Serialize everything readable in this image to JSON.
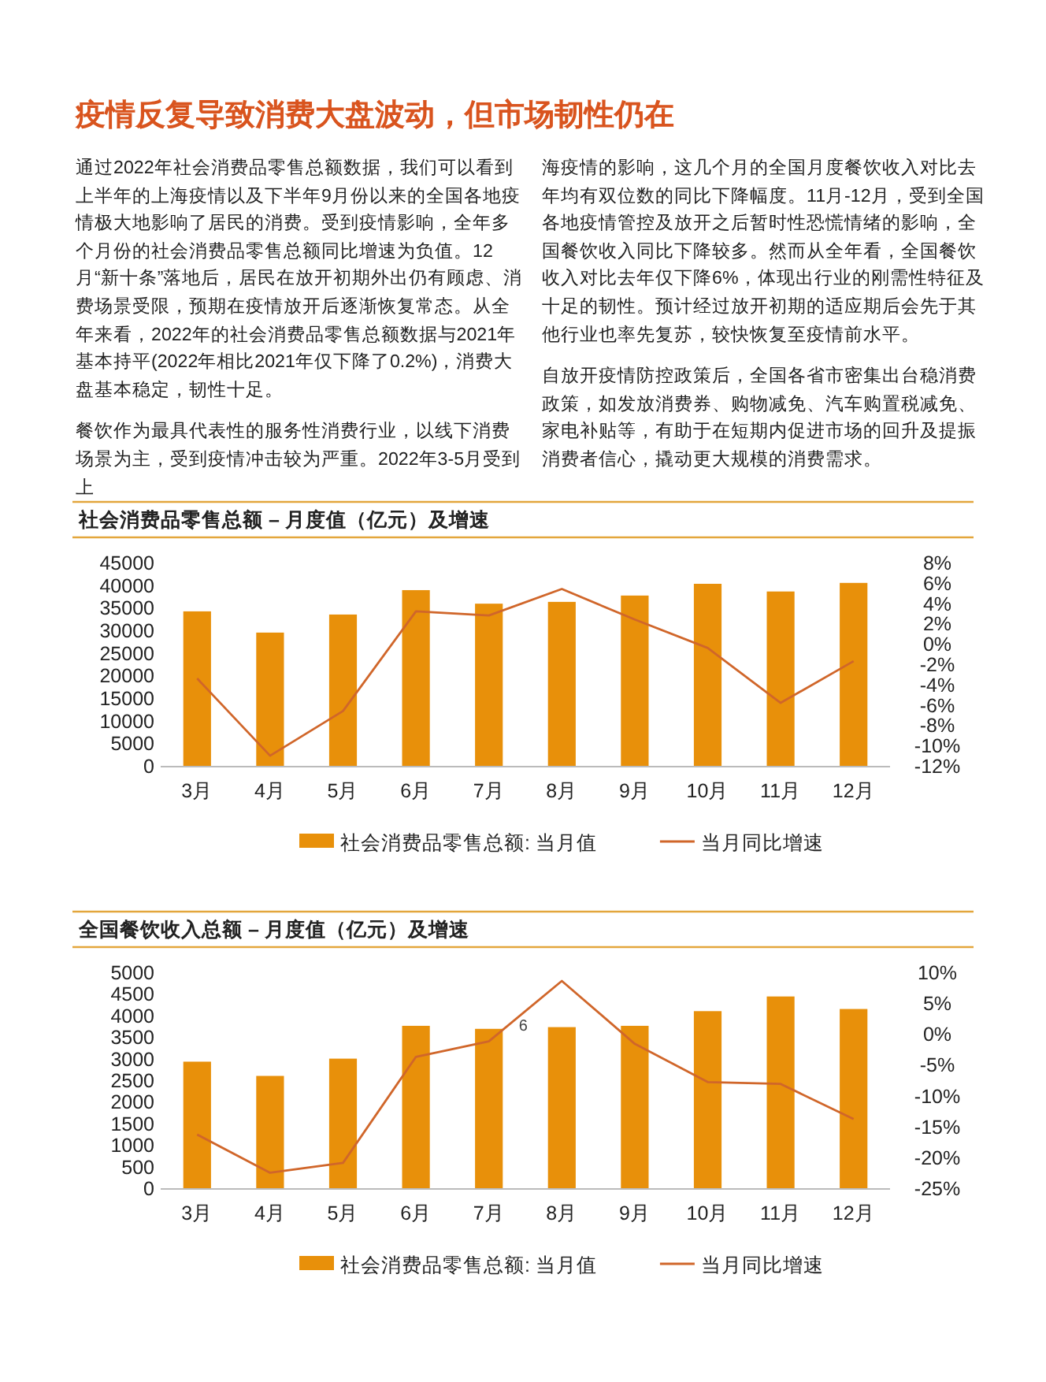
{
  "chart_data": [
    {
      "type": "other",
      "title": "疫情反复导致消费大盘波动，但市场韧性仍在",
      "annotations": [
        "通过2022年社会消费品零售总额数据，我们可以看到上半年的上海疫情以及下半年9月份以来的全国各地疫情极大地影响了居民的消费。受到疫情影响，全年多个月份的社会消费品零售总额同比增速为负值。12月“新十条”落地后，居民在放开初期外出仍有顾虑、消费场景受限，预期在疫情放开后逐渐恢复常态。从全年来看，2022年的社会消费品零售总额数据与2021年基本持平(2022年相比2021年仅下降了0.2%)，消费大盘基本稳定，韧性十足。",
        "餐饮作为最具代表性的服务性消费行业，以线下消费场景为主，受到疫情冲击较为严重。2022年3-5月受到上",
        "海疫情的影响，这几个月的全国月度餐饮收入对比去年均有双位数的同比下降幅度。11月-12月，受到全国各地疫情管控及放开之后暂时性恐慌情绪的影响，全国餐饮收入同比下降较多。然而从全年看，全国餐饮收入对比去年仅下降6%，体现出行业的刚需性特征及十足的韧性。预计经过放开初期的适应期后会先于其他行业也率先复苏，较快恢复至疫情前水平。",
        "自放开疫情防控政策后，全国各省市密集出台稳消费政策，如发放消费券、购物减免、汽车购置税减免、家电补贴等，有助于在短期内促进市场的回升及提振消费者信心，撬动更大规模的消费需求。"
      ]
    },
    {
      "type": "bar",
      "title": "社会消费品零售总额 – 月度值（亿元）及增速",
      "categories": [
        "3月",
        "4月",
        "5月",
        "6月",
        "7月",
        "8月",
        "9月",
        "10月",
        "11月",
        "12月"
      ],
      "series": [
        {
          "name": "社会消费品零售总额: 当月值",
          "type": "bar",
          "color": "#e8900a",
          "values": [
            34200,
            29500,
            33500,
            38900,
            35900,
            36300,
            37700,
            40300,
            38600,
            40500
          ]
        },
        {
          "name": "当月同比增速",
          "type": "line",
          "axis": "y2",
          "color": "#d0662a",
          "values": [
            -3.4,
            -11.0,
            -6.6,
            3.2,
            2.8,
            5.4,
            2.4,
            -0.4,
            -5.8,
            -1.7
          ]
        }
      ],
      "ylim": [
        0,
        45000
      ],
      "yticks": [
        0,
        5000,
        10000,
        15000,
        20000,
        25000,
        30000,
        35000,
        40000,
        45000
      ],
      "y2lim": [
        -12,
        8
      ],
      "y2ticks": [
        {
          "value": -12,
          "label": "-12%"
        },
        {
          "value": -10,
          "label": "-10%"
        },
        {
          "value": -8,
          "label": "-8%"
        },
        {
          "value": -6,
          "label": "-6%"
        },
        {
          "value": -4,
          "label": "-4%"
        },
        {
          "value": -2,
          "label": "-2%"
        },
        {
          "value": 0,
          "label": "0%"
        },
        {
          "value": 2,
          "label": "2%"
        },
        {
          "value": 4,
          "label": "4%"
        },
        {
          "value": 6,
          "label": "6%"
        },
        {
          "value": 8,
          "label": "8%"
        }
      ],
      "legend": "bottom"
    },
    {
      "type": "bar",
      "title": "全国餐饮收入总额 – 月度值（亿元）及增速",
      "categories": [
        "3月",
        "4月",
        "5月",
        "6月",
        "7月",
        "8月",
        "9月",
        "10月",
        "11月",
        "12月"
      ],
      "series": [
        {
          "name": "社会消费品零售总额: 当月值",
          "type": "bar",
          "color": "#e8900a",
          "values": [
            2930,
            2600,
            3000,
            3760,
            3690,
            3730,
            3760,
            4100,
            4440,
            4150
          ]
        },
        {
          "name": "当月同比增速",
          "type": "line",
          "axis": "y2",
          "color": "#d0662a",
          "values": [
            -16.3,
            -22.5,
            -20.9,
            -3.7,
            -1.2,
            8.6,
            -1.6,
            -7.8,
            -8.1,
            -13.8
          ]
        }
      ],
      "ylim": [
        0,
        5000
      ],
      "yticks": [
        0,
        500,
        1000,
        1500,
        2000,
        2500,
        3000,
        3500,
        4000,
        4500,
        5000
      ],
      "y2lim": [
        -25,
        10
      ],
      "y2ticks": [
        {
          "value": -25,
          "label": "-25%"
        },
        {
          "value": -20,
          "label": "-20%"
        },
        {
          "value": -15,
          "label": "-15%"
        },
        {
          "value": -10,
          "label": "-10%"
        },
        {
          "value": -5,
          "label": "-5%"
        },
        {
          "value": 0,
          "label": "0%"
        },
        {
          "value": 5,
          "label": "5%"
        },
        {
          "value": 10,
          "label": "10%"
        }
      ],
      "annotations": [
        "6"
      ],
      "legend": "bottom"
    }
  ]
}
